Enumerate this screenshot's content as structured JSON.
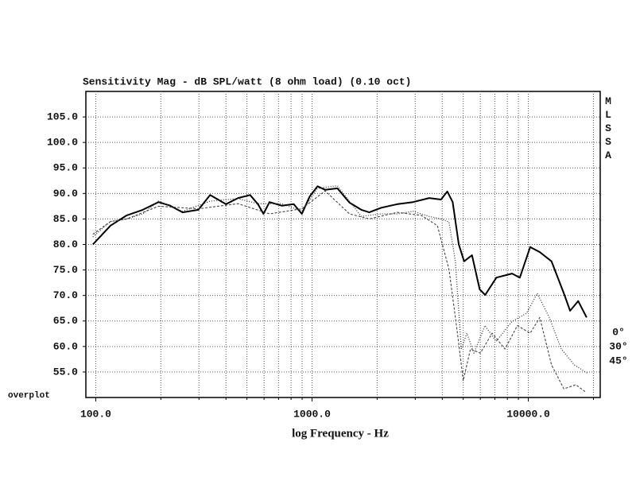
{
  "chart_data": {
    "type": "line",
    "title": "Sensitivity Mag - dB SPL/watt (8 ohm load) (0.10 oct)",
    "x_label": "log Frequency - Hz",
    "annotations": [
      "overplot",
      "MLSSA"
    ],
    "log_x": true,
    "grid": true,
    "legend_position": "right",
    "xlim": [
      90,
      21500
    ],
    "ylim": [
      50,
      110
    ],
    "xticks": [
      {
        "value": 100,
        "label": "100.0"
      },
      {
        "value": 1000,
        "label": "1000.0"
      },
      {
        "value": 10000,
        "label": "10000.0"
      }
    ],
    "x_minor_ticks": [
      200,
      300,
      400,
      500,
      600,
      700,
      800,
      900,
      2000,
      3000,
      4000,
      5000,
      6000,
      7000,
      8000,
      9000,
      20000
    ],
    "yticks": [
      {
        "value": 55,
        "label": "55.0"
      },
      {
        "value": 60,
        "label": "60.0"
      },
      {
        "value": 65,
        "label": "65.0"
      },
      {
        "value": 70,
        "label": "70.0"
      },
      {
        "value": 75,
        "label": "75.0"
      },
      {
        "value": 80,
        "label": "80.0"
      },
      {
        "value": 85,
        "label": "85.0"
      },
      {
        "value": 90,
        "label": "90.0"
      },
      {
        "value": 95,
        "label": "95.0"
      },
      {
        "value": 100,
        "label": "100.0"
      },
      {
        "value": 105,
        "label": "105.0"
      }
    ],
    "series": [
      {
        "name": "0°",
        "color": "#000000",
        "dash": "none",
        "width": 2,
        "x": [
          97,
          117,
          139,
          165,
          195,
          221,
          252,
          298,
          338,
          400,
          455,
          517,
          562,
          596,
          636,
          724,
          823,
          897,
          975,
          1060,
          1150,
          1310,
          1490,
          1690,
          1840,
          2090,
          2480,
          2930,
          3480,
          3950,
          4220,
          4470,
          4770,
          5050,
          5490,
          5960,
          6320,
          7120,
          8410,
          9140,
          10200,
          11300,
          12800,
          14600,
          15600,
          17000,
          18600
        ],
        "values": [
          80.0,
          83.7,
          85.7,
          86.8,
          88.3,
          87.6,
          86.3,
          86.8,
          89.7,
          87.9,
          89.1,
          89.7,
          87.9,
          86.0,
          88.3,
          87.6,
          87.9,
          86.0,
          89.4,
          91.4,
          90.7,
          91.0,
          88.2,
          86.8,
          86.3,
          87.2,
          87.9,
          88.3,
          89.1,
          88.8,
          90.4,
          88.3,
          80.0,
          76.7,
          77.9,
          71.2,
          70.1,
          73.5,
          74.3,
          73.5,
          79.5,
          78.5,
          76.7,
          70.4,
          67.0,
          68.9,
          65.7
        ]
      },
      {
        "name": "30°",
        "color": "#333333",
        "dash": "1,2",
        "width": 1.3,
        "x": [
          97,
          117,
          139,
          165,
          195,
          252,
          338,
          455,
          562,
          724,
          897,
          1060,
          1310,
          1690,
          2090,
          2480,
          2930,
          3480,
          3950,
          4300,
          4600,
          4900,
          5200,
          5600,
          6300,
          7100,
          8400,
          9800,
          11000,
          12500,
          14200,
          16300,
          18700
        ],
        "values": [
          81.5,
          84.5,
          85.0,
          86.0,
          88.5,
          86.5,
          88.5,
          89.0,
          88.0,
          88.0,
          86.5,
          91.0,
          91.5,
          85.5,
          86.0,
          86.0,
          86.5,
          85.5,
          85.0,
          84.4,
          76.7,
          59.5,
          62.6,
          58.7,
          64.1,
          61.0,
          64.9,
          66.5,
          70.4,
          65.7,
          59.5,
          56.4,
          54.8
        ]
      },
      {
        "name": "45°",
        "color": "#444444",
        "dash": "3,2",
        "width": 1.1,
        "x": [
          97,
          117,
          139,
          195,
          298,
          455,
          636,
          897,
          1150,
          1490,
          1840,
          2480,
          3200,
          3800,
          4300,
          4700,
          5000,
          5400,
          6000,
          6800,
          7800,
          8900,
          10200,
          11300,
          12800,
          14600,
          16600,
          18500
        ],
        "values": [
          82.0,
          84.5,
          85.0,
          87.5,
          87.0,
          88.0,
          86.0,
          87.0,
          90.5,
          86.0,
          85.0,
          86.3,
          85.7,
          83.7,
          75.1,
          62.6,
          53.3,
          59.5,
          58.7,
          62.6,
          59.5,
          64.1,
          62.6,
          65.7,
          56.4,
          51.7,
          52.5,
          51.0
        ]
      }
    ]
  }
}
